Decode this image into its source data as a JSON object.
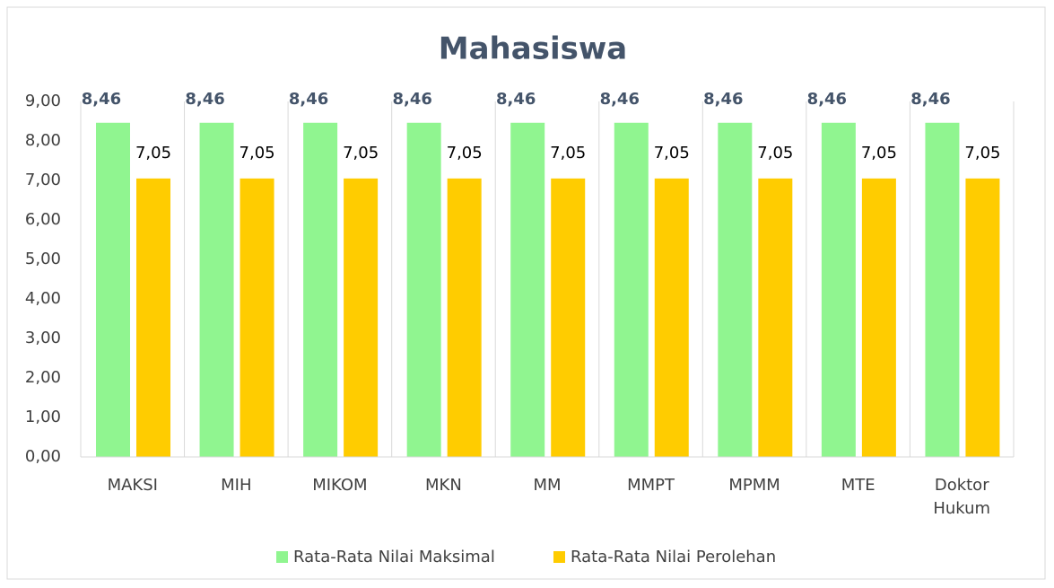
{
  "chart_data": {
    "type": "bar",
    "title": "Mahasiswa",
    "categories": [
      "MAKSI",
      "MIH",
      "MIKOM",
      "MKN",
      "MM",
      "MMPT",
      "MPMM",
      "MTE",
      "Doktor Hukum"
    ],
    "series": [
      {
        "name": "Rata-Rata Nilai Maksimal",
        "color": "#90f590",
        "values": [
          8.46,
          8.46,
          8.46,
          8.46,
          8.46,
          8.46,
          8.46,
          8.46,
          8.46
        ],
        "value_labels": [
          "8,46",
          "8,46",
          "8,46",
          "8,46",
          "8,46",
          "8,46",
          "8,46",
          "8,46",
          "8,46"
        ]
      },
      {
        "name": "Rata-Rata Nilai Perolehan",
        "color": "#ffcc00",
        "values": [
          7.05,
          7.05,
          7.05,
          7.05,
          7.05,
          7.05,
          7.05,
          7.05,
          7.05
        ],
        "value_labels": [
          "7,05",
          "7,05",
          "7,05",
          "7,05",
          "7,05",
          "7,05",
          "7,05",
          "7,05",
          "7,05"
        ]
      }
    ],
    "ylim": [
      0,
      9
    ],
    "yticks": [
      {
        "value": 0,
        "label": "0,00"
      },
      {
        "value": 1,
        "label": "1,00"
      },
      {
        "value": 2,
        "label": "2,00"
      },
      {
        "value": 3,
        "label": "3,00"
      },
      {
        "value": 4,
        "label": "4,00"
      },
      {
        "value": 5,
        "label": "5,00"
      },
      {
        "value": 6,
        "label": "6,00"
      },
      {
        "value": 7,
        "label": "7,00"
      },
      {
        "value": 8,
        "label": "8,00"
      },
      {
        "value": 9,
        "label": "9,00"
      }
    ],
    "legend": "bottom"
  }
}
